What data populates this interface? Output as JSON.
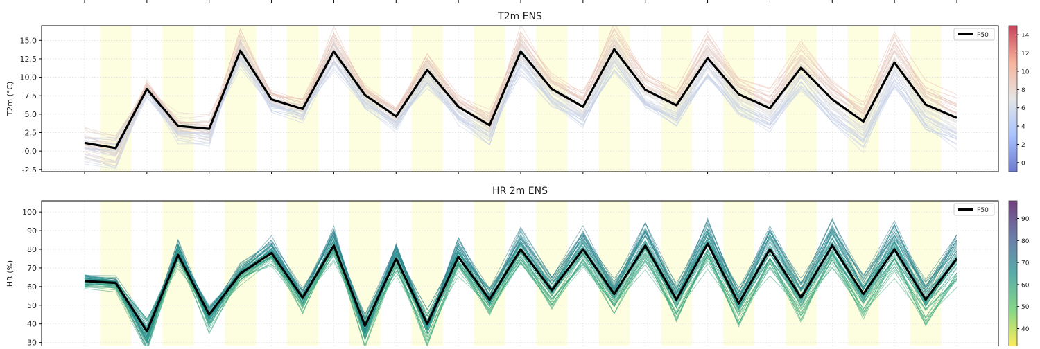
{
  "chart_data": [
    {
      "type": "line",
      "title": "T2m ENS",
      "ylabel": "T2m (°C)",
      "xlabel": "",
      "ylim": [
        -2.8,
        17
      ],
      "yticks": [
        "-2.5",
        "0.0",
        "2.5",
        "5.0",
        "7.5",
        "10.0",
        "12.5",
        "15.0"
      ],
      "grid": true,
      "legend": {
        "position": "top-right",
        "entries": [
          "P50"
        ]
      },
      "colorbar": {
        "ticks": [
          "0",
          "2",
          "4",
          "6",
          "8",
          "10",
          "12",
          "14"
        ],
        "range": [
          -1,
          15
        ],
        "colormap": "coolwarm"
      },
      "daytime_shading": true,
      "x_hours": [
        0,
        12,
        24,
        36,
        48,
        60,
        72,
        84,
        96,
        108,
        120,
        132,
        144,
        156,
        168,
        180,
        192,
        204,
        216,
        228,
        240,
        252,
        264,
        276,
        288,
        300,
        312,
        324,
        336
      ],
      "series": [
        {
          "name": "P50",
          "values": [
            1.1,
            0.4,
            8.4,
            3.4,
            3.0,
            13.6,
            7.0,
            5.7,
            13.5,
            7.6,
            4.7,
            11.0,
            6.0,
            3.5,
            13.5,
            8.4,
            6.0,
            13.8,
            8.3,
            6.2,
            12.6,
            7.7,
            5.8,
            11.3,
            7.0,
            4.0,
            12.0,
            6.3,
            4.5
          ]
        }
      ]
    },
    {
      "type": "line",
      "title": "HR 2m ENS",
      "ylabel": "HR (%)",
      "xlabel": "",
      "ylim": [
        28,
        106
      ],
      "yticks": [
        "30",
        "40",
        "50",
        "60",
        "70",
        "80",
        "90",
        "100"
      ],
      "grid": true,
      "legend": {
        "position": "top-right",
        "entries": [
          "P50"
        ]
      },
      "colorbar": {
        "ticks": [
          "40",
          "50",
          "60",
          "70",
          "80",
          "90"
        ],
        "range": [
          32,
          98
        ],
        "colormap": "viridis"
      },
      "daytime_shading": true,
      "x_hours": [
        0,
        12,
        24,
        36,
        48,
        60,
        72,
        84,
        96,
        108,
        120,
        132,
        144,
        156,
        168,
        180,
        192,
        204,
        216,
        228,
        240,
        252,
        264,
        276,
        288,
        300,
        312,
        324,
        336
      ],
      "series": [
        {
          "name": "P50",
          "values": [
            63,
            62,
            36,
            77,
            45,
            67,
            78,
            54,
            82,
            39,
            75,
            40,
            76,
            53,
            80,
            58,
            80,
            56,
            82,
            53,
            83,
            51,
            80,
            54,
            82,
            56,
            80,
            53,
            75
          ]
        }
      ]
    }
  ]
}
